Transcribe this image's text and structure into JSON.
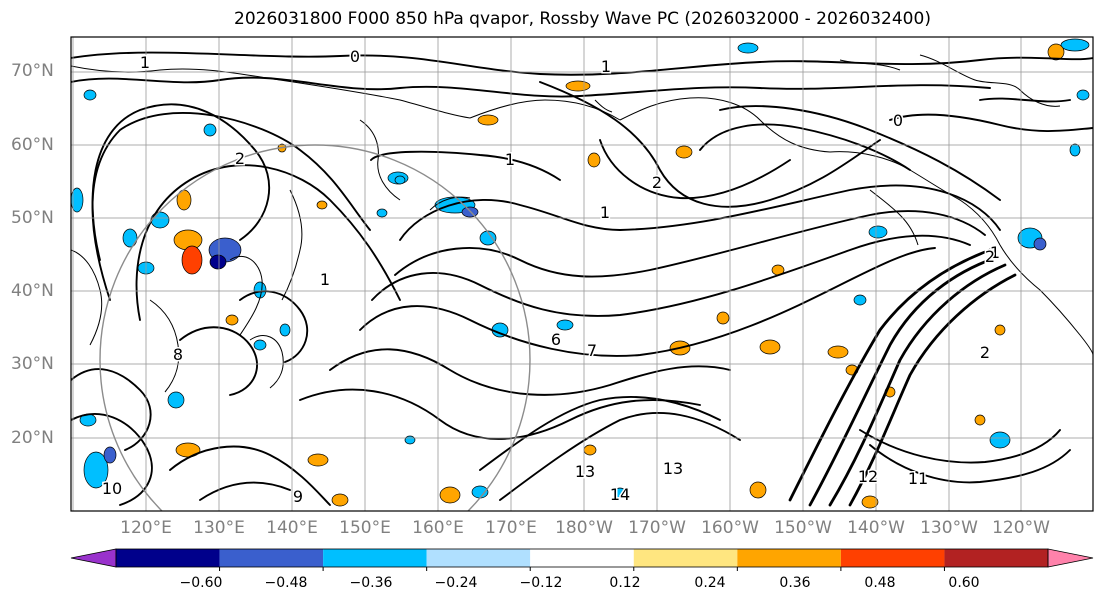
{
  "title": "2026031800 F000 850 hPa qvapor, Rossby Wave PC (2026032000 - 2026032400)",
  "map": {
    "lat_labels": [
      "70°N",
      "60°N",
      "50°N",
      "40°N",
      "30°N",
      "20°N"
    ],
    "lon_labels": [
      "120°E",
      "130°E",
      "140°E",
      "150°E",
      "160°E",
      "170°E",
      "180°W",
      "170°W",
      "160°W",
      "150°W",
      "140°W",
      "130°W",
      "120°W"
    ],
    "contour_labels": [
      "1",
      "0",
      "1",
      "0",
      "2",
      "1",
      "2",
      "1",
      "1",
      "2",
      "7",
      "13",
      "13",
      "14",
      "12",
      "11",
      "6",
      "10",
      "9",
      "1",
      "2",
      "8"
    ],
    "colors": {
      "grid": "#9a9a9a",
      "coast": "#000000",
      "contour": "#000000",
      "pc_circle": "#8c8c8c"
    }
  },
  "colorbar": {
    "tick_labels": [
      "−0.60",
      "−0.48",
      "−0.36",
      "−0.24",
      "−0.12",
      "0.12",
      "0.24",
      "0.36",
      "0.48",
      "0.60"
    ],
    "bins": [
      {
        "color": "#9932cc"
      },
      {
        "color": "#00008b"
      },
      {
        "color": "#3a5fcd"
      },
      {
        "color": "#00bfff"
      },
      {
        "color": "#b0e0ff"
      },
      {
        "color": "#ffffff"
      },
      {
        "color": "#ffe680"
      },
      {
        "color": "#ffa500"
      },
      {
        "color": "#ff4000"
      },
      {
        "color": "#b22222"
      },
      {
        "color": "#ff82ab"
      }
    ]
  }
}
